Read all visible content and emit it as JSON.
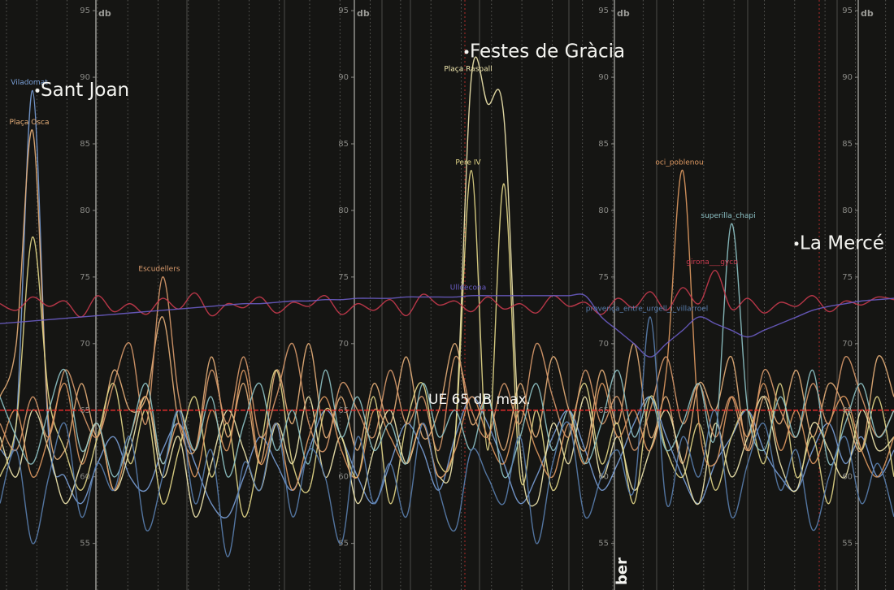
{
  "chart_data": {
    "type": "line",
    "y_axis_label": "db",
    "month_label": "ber",
    "ylim": [
      51.5,
      95.8
    ],
    "yticks": [
      55,
      60,
      65,
      70,
      75,
      80,
      85,
      90,
      95
    ],
    "xlim": [
      0,
      55
    ],
    "x": [
      0,
      1,
      2,
      3,
      4,
      5,
      6,
      7,
      8,
      9,
      10,
      11,
      12,
      13,
      14,
      15,
      16,
      17,
      18,
      19,
      20,
      21,
      22,
      23,
      24,
      25,
      26,
      27,
      28,
      29,
      30,
      31,
      32,
      33,
      34,
      35,
      36,
      37,
      38,
      39,
      40,
      41,
      42,
      43,
      44,
      45,
      46,
      47,
      48,
      49,
      50,
      51,
      52,
      53,
      54,
      55
    ],
    "threshold": {
      "value": 65,
      "label": "UE 65 dB max.",
      "color": "#e02a2a"
    },
    "annotations": [
      {
        "text": "Sant Joan",
        "x": 2.3,
        "y": 89
      },
      {
        "text": "Festes de Gràcia",
        "x": 28.7,
        "y": 91.9
      },
      {
        "text": "La Mercé",
        "x": 49,
        "y": 77.5
      }
    ],
    "series": [
      {
        "name": "Viladomat",
        "color": "#7aa0d8",
        "values": [
          62,
          64,
          89,
          63,
          60,
          58,
          61,
          63,
          60,
          59,
          62,
          64,
          61,
          58,
          57,
          60,
          63,
          61,
          59,
          62,
          65,
          63,
          60,
          58,
          61,
          64,
          62,
          59,
          63,
          66,
          64,
          61,
          58,
          60,
          63,
          65,
          62,
          59,
          61,
          64,
          66,
          63,
          60,
          58,
          61,
          63,
          65,
          62,
          60,
          59,
          62,
          64,
          61,
          63,
          60,
          62
        ]
      },
      {
        "name": "Plaça Osca",
        "color": "#e8b07a",
        "values": [
          66,
          70,
          86,
          64,
          62,
          67,
          63,
          68,
          65,
          66,
          72,
          64,
          62,
          69,
          63,
          67,
          61,
          68,
          64,
          70,
          63,
          66,
          62,
          67,
          64,
          69,
          63,
          65,
          70,
          64,
          66,
          62,
          67,
          63,
          69,
          65,
          62,
          68,
          64,
          70,
          63,
          66,
          61,
          67,
          65,
          69,
          62,
          66,
          64,
          68,
          63,
          67,
          65,
          62,
          69,
          66
        ]
      },
      {
        "name": "Plaça Raspall",
        "color": "#f3e9b0",
        "values": [
          63,
          60,
          65,
          62,
          58,
          61,
          64,
          59,
          62,
          66,
          60,
          63,
          57,
          61,
          65,
          62,
          59,
          64,
          61,
          66,
          60,
          63,
          58,
          62,
          65,
          61,
          64,
          60,
          63,
          90,
          88,
          87,
          62,
          58,
          64,
          61,
          66,
          60,
          63,
          59,
          62,
          65,
          61,
          58,
          64,
          60,
          63,
          66,
          61,
          59,
          64,
          62,
          60,
          65,
          62,
          63
        ]
      },
      {
        "name": "Pere IV",
        "color": "#e6d98a",
        "values": [
          60,
          64,
          78,
          66,
          62,
          59,
          63,
          67,
          61,
          65,
          58,
          62,
          66,
          60,
          64,
          57,
          62,
          68,
          61,
          59,
          65,
          63,
          60,
          66,
          58,
          64,
          67,
          61,
          63,
          83,
          62,
          82,
          60,
          65,
          59,
          63,
          67,
          61,
          64,
          58,
          66,
          62,
          60,
          64,
          59,
          63,
          65,
          61,
          67,
          60,
          63,
          58,
          65,
          62,
          66,
          60
        ]
      },
      {
        "name": "Escudellers",
        "color": "#d99a6c",
        "values": [
          64,
          62,
          66,
          63,
          68,
          65,
          63,
          67,
          70,
          64,
          75,
          66,
          62,
          68,
          64,
          69,
          63,
          66,
          70,
          64,
          62,
          67,
          65,
          63,
          68,
          64,
          66,
          62,
          69,
          65,
          63,
          67,
          64,
          70,
          66,
          63,
          68,
          64,
          66,
          62,
          65,
          69,
          64,
          67,
          63,
          66,
          62,
          68,
          65,
          63,
          67,
          64,
          69,
          66,
          63,
          65
        ]
      },
      {
        "name": "oci_poblenou",
        "color": "#e09a62",
        "values": [
          62,
          65,
          60,
          63,
          67,
          61,
          64,
          59,
          63,
          66,
          61,
          64,
          60,
          65,
          62,
          68,
          61,
          64,
          59,
          63,
          66,
          62,
          60,
          65,
          63,
          61,
          64,
          60,
          62,
          66,
          63,
          61,
          65,
          62,
          60,
          64,
          61,
          67,
          63,
          65,
          62,
          68,
          83,
          64,
          61,
          66,
          63,
          67,
          62,
          65,
          61,
          64,
          66,
          62,
          60,
          63
        ]
      },
      {
        "name": "superilla_chapi",
        "color": "#8fc4c8",
        "values": [
          66,
          63,
          61,
          65,
          68,
          62,
          64,
          60,
          63,
          67,
          61,
          65,
          62,
          66,
          60,
          64,
          67,
          62,
          65,
          61,
          68,
          63,
          66,
          62,
          64,
          61,
          67,
          63,
          65,
          62,
          66,
          60,
          63,
          67,
          62,
          65,
          61,
          64,
          68,
          63,
          66,
          62,
          64,
          67,
          63,
          79,
          65,
          62,
          66,
          63,
          68,
          61,
          64,
          67,
          63,
          65
        ]
      },
      {
        "name": "girona___gyco",
        "color": "#c83a4e",
        "values": [
          73,
          72.5,
          73.5,
          72.8,
          73.2,
          72,
          73.6,
          72.4,
          73,
          72.2,
          73.4,
          72.6,
          73.8,
          72.1,
          73,
          72.7,
          73.5,
          72.3,
          73.1,
          72.8,
          73.6,
          72.2,
          73,
          72.5,
          73.3,
          72.1,
          73.7,
          72.9,
          73.2,
          72.4,
          73.5,
          72.6,
          73,
          72.3,
          73.6,
          72.8,
          73.1,
          72.2,
          73.4,
          72.7,
          73.9,
          72.5,
          74.2,
          73,
          75.5,
          72.6,
          73.4,
          72.3,
          73.1,
          72.8,
          73.6,
          72.4,
          73.2,
          72.9,
          73.5,
          73.3
        ]
      },
      {
        "name": "Ulldecona",
        "color": "#6a5cc4",
        "values": [
          71.5,
          71.6,
          71.7,
          71.8,
          71.9,
          72,
          72.1,
          72.2,
          72.3,
          72.4,
          72.5,
          72.6,
          72.7,
          72.8,
          72.9,
          73,
          73,
          73.1,
          73.2,
          73.2,
          73.3,
          73.3,
          73.4,
          73.4,
          73.4,
          73.5,
          73.5,
          73.5,
          73.5,
          73.6,
          73.6,
          73.6,
          73.6,
          73.6,
          73.6,
          73.6,
          73.6,
          72,
          71,
          70,
          69,
          70,
          71,
          72,
          71.5,
          71,
          70.5,
          71,
          71.5,
          72,
          72.5,
          72.8,
          73,
          73.2,
          73.3,
          73.4
        ]
      },
      {
        "name": "provença_entre_urgell_i_villarroel",
        "color": "#5a7fb0",
        "values": [
          58,
          62,
          55,
          60,
          64,
          57,
          61,
          59,
          63,
          56,
          60,
          65,
          58,
          62,
          54,
          61,
          59,
          64,
          57,
          62,
          60,
          55,
          63,
          58,
          61,
          57,
          64,
          59,
          56,
          62,
          60,
          58,
          63,
          55,
          61,
          64,
          57,
          60,
          62,
          59,
          72,
          58,
          63,
          60,
          65,
          57,
          61,
          64,
          59,
          62,
          56,
          60,
          63,
          58,
          61,
          57
        ]
      }
    ]
  }
}
